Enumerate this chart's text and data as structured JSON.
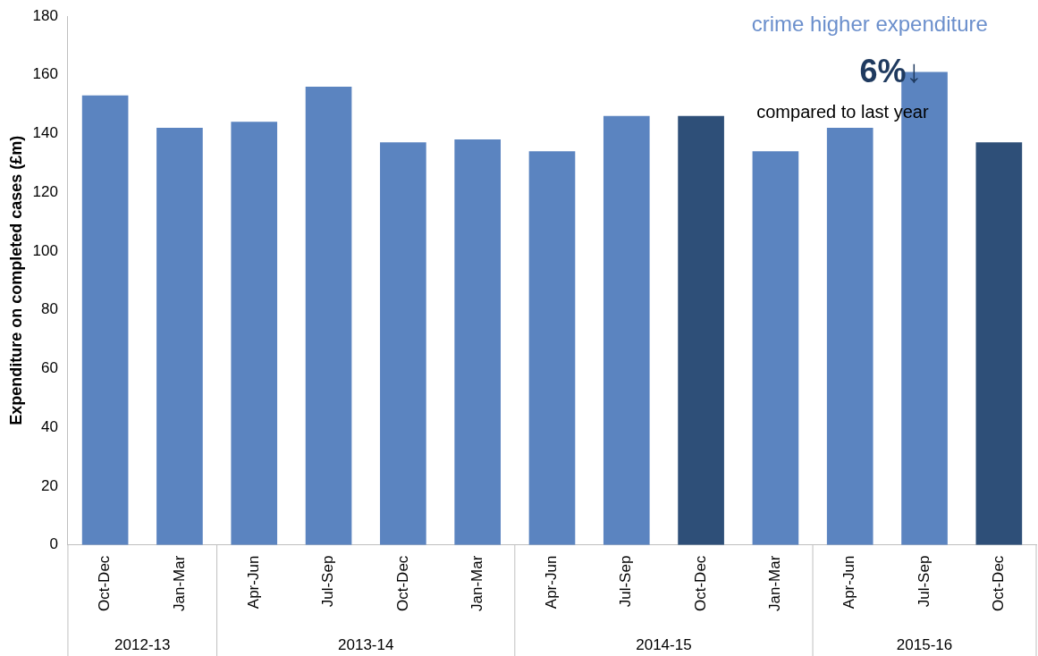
{
  "chart_data": {
    "type": "bar",
    "ylabel": "Expenditure on completed cases (£m)",
    "categories": [
      "Oct-Dec",
      "Jan-Mar",
      "Apr-Jun",
      "Jul-Sep",
      "Oct-Dec",
      "Jan-Mar",
      "Apr-Jun",
      "Jul-Sep",
      "Oct-Dec",
      "Jan-Mar",
      "Apr-Jun",
      "Jul-Sep",
      "Oct-Dec"
    ],
    "values": [
      153,
      142,
      144,
      156,
      137,
      138,
      134,
      146,
      146,
      134,
      142,
      161,
      137
    ],
    "colors": [
      "#5b84c0",
      "#5b84c0",
      "#5b84c0",
      "#5b84c0",
      "#5b84c0",
      "#5b84c0",
      "#5b84c0",
      "#5b84c0",
      "#2e4f78",
      "#5b84c0",
      "#5b84c0",
      "#5b84c0",
      "#2e4f78"
    ],
    "ylim": [
      0,
      180
    ],
    "yticks": [
      0,
      20,
      40,
      60,
      80,
      100,
      120,
      140,
      160,
      180
    ],
    "grid": false,
    "legend": false,
    "annotations": [
      "2012-13",
      "2013-14",
      "2014-15",
      "2015-16",
      "crime higher expenditure",
      "6%↓",
      "compared to last year"
    ]
  }
}
